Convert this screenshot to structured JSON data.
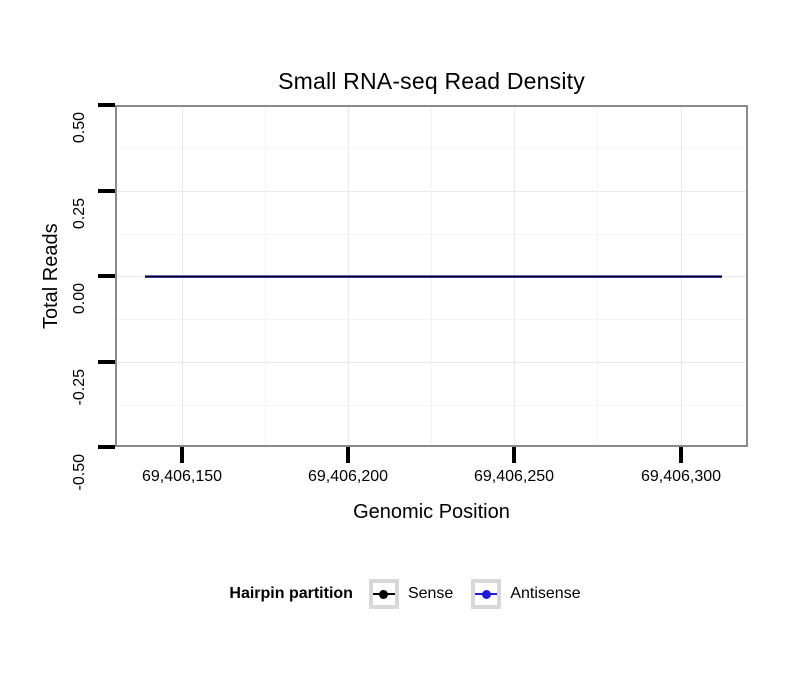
{
  "title": "Small RNA-seq Read Density",
  "x_axis": {
    "label": "Genomic Position",
    "tick_labels": [
      "69,406,150",
      "69,406,200",
      "69,406,250",
      "69,406,300"
    ]
  },
  "y_axis": {
    "label": "Total Reads",
    "tick_labels": [
      "0.50",
      "0.25",
      "0.00",
      "-0.25",
      "-0.50"
    ]
  },
  "legend": {
    "title": "Hairpin partition",
    "items": [
      {
        "label": "Sense",
        "color": "#000000"
      },
      {
        "label": "Antisense",
        "color": "#1C1CDE"
      }
    ]
  },
  "chart_data": {
    "type": "line",
    "title": "Small RNA-seq Read Density",
    "xlabel": "Genomic Position",
    "ylabel": "Total Reads",
    "x_ticks": [
      69406150,
      69406200,
      69406250,
      69406300
    ],
    "x_tick_labels": [
      "69,406,150",
      "69,406,200",
      "69,406,250",
      "69,406,300"
    ],
    "y_ticks": [
      0.5,
      0.25,
      0.0,
      -0.25,
      -0.5
    ],
    "y_tick_labels": [
      "0.50",
      "0.25",
      "0.00",
      "-0.25",
      "-0.50"
    ],
    "ylim": [
      -0.5,
      0.5
    ],
    "xlim_approx": [
      69406130,
      69406320
    ],
    "grid": "major and minor light-gray gridlines on white panel",
    "legend_position": "bottom",
    "legend_title": "Hairpin partition",
    "series": [
      {
        "name": "Sense",
        "color": "#000000",
        "y_constant": 0,
        "x_start_approx": 69406139,
        "x_end_approx": 69406312
      },
      {
        "name": "Antisense",
        "color": "#1C1CDE",
        "y_constant": 0,
        "x_start_approx": 69406139,
        "x_end_approx": 69406312
      }
    ],
    "note": "Both series overlap as a single flat line at y = 0 across the full genomic interval."
  }
}
